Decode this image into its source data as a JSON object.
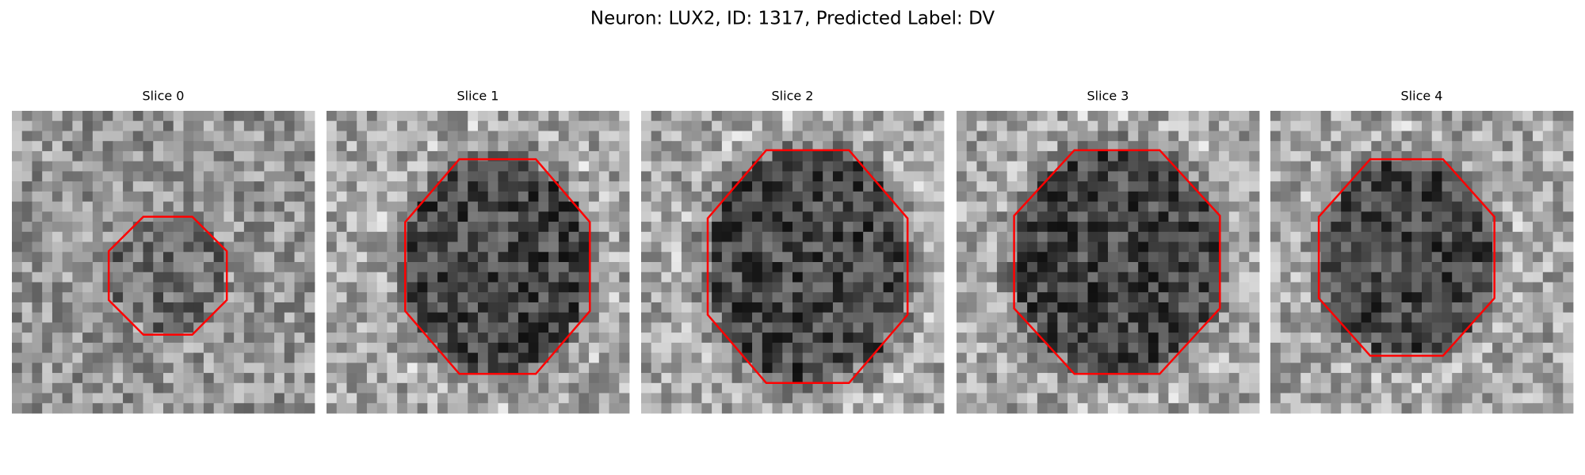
{
  "title": "Neuron: LUX2, ID: 1317, Predicted Label: DV",
  "panels": [
    {
      "title": "Slice 0"
    },
    {
      "title": "Slice 1"
    },
    {
      "title": "Slice 2"
    },
    {
      "title": "Slice 3"
    },
    {
      "title": "Slice 4"
    }
  ]
}
